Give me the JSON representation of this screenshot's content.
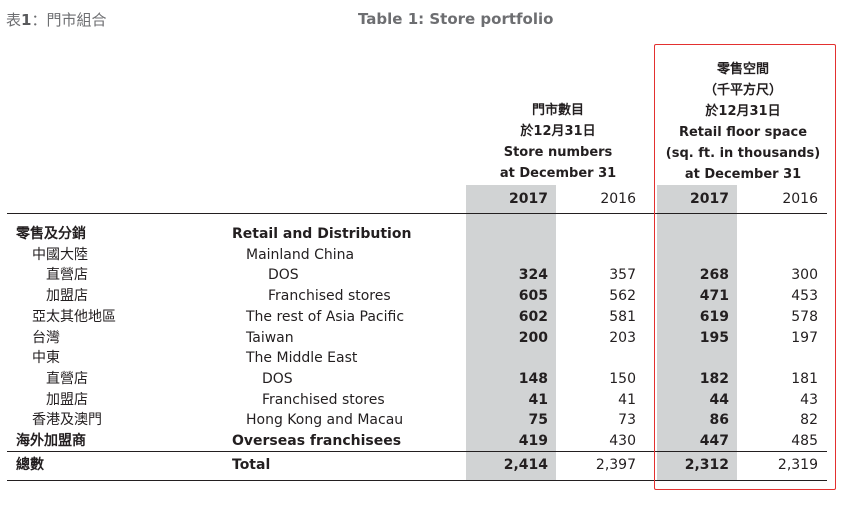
{
  "title": {
    "cn_prefix": "表",
    "cn_number": "1",
    "cn_rest": "：門市組合",
    "en": "Table 1: Store portfolio"
  },
  "store_header": [
    "門市數目",
    "於12月31日",
    "Store numbers",
    "at December 31"
  ],
  "floor_header": [
    "零售空間",
    "（千平方尺）",
    "於12月31日",
    "Retail floor space",
    "(sq. ft. in thousands)",
    "at December 31"
  ],
  "years": {
    "current": "2017",
    "previous": "2016"
  },
  "rows": [
    {
      "cn": "零售及分銷",
      "en": "Retail and Distribution",
      "level": 0,
      "bold": true,
      "s17": "",
      "s16": "",
      "f17": "",
      "f16": ""
    },
    {
      "cn": "中國大陸",
      "en": "Mainland China",
      "level": 1,
      "bold": false,
      "s17": "",
      "s16": "",
      "f17": "",
      "f16": ""
    },
    {
      "cn": "直營店",
      "en": "DOS",
      "level": 2,
      "bold": false,
      "s17": "324",
      "s16": "357",
      "f17": "268",
      "f16": "300"
    },
    {
      "cn": "加盟店",
      "en": "Franchised stores",
      "level": 2,
      "bold": false,
      "s17": "605",
      "s16": "562",
      "f17": "471",
      "f16": "453"
    },
    {
      "cn": "亞太其他地區",
      "en": "The rest of Asia Pacific",
      "level": 1,
      "bold": false,
      "s17": "602",
      "s16": "581",
      "f17": "619",
      "f16": "578"
    },
    {
      "cn": "台灣",
      "en": "Taiwan",
      "level": 1,
      "bold": false,
      "s17": "200",
      "s16": "203",
      "f17": "195",
      "f16": "197"
    },
    {
      "cn": "中東",
      "en": "The Middle East",
      "level": 1,
      "bold": false,
      "s17": "",
      "s16": "",
      "f17": "",
      "f16": ""
    },
    {
      "cn": "直營店",
      "en": "DOS",
      "level": 2,
      "bold": false,
      "s17": "148",
      "s16": "150",
      "f17": "182",
      "f16": "181"
    },
    {
      "cn": "加盟店",
      "en": "Franchised stores",
      "level": 2,
      "bold": false,
      "s17": "41",
      "s16": "41",
      "f17": "44",
      "f16": "43"
    },
    {
      "cn": "香港及澳門",
      "en": "Hong Kong and Macau",
      "level": 1,
      "bold": false,
      "s17": "75",
      "s16": "73",
      "f17": "86",
      "f16": "82"
    },
    {
      "cn": "海外加盟商",
      "en": "Overseas franchisees",
      "level": 0,
      "bold": true,
      "s17": "419",
      "s16": "430",
      "f17": "447",
      "f16": "485"
    }
  ],
  "total": {
    "cn": "總數",
    "en": "Total",
    "s17": "2,414",
    "s16": "2,397",
    "f17": "2,312",
    "f16": "2,319"
  },
  "colors": {
    "shade": "#d1d3d4",
    "highlight_box": "#e3302f",
    "heading_grey": "#6d6e71"
  }
}
